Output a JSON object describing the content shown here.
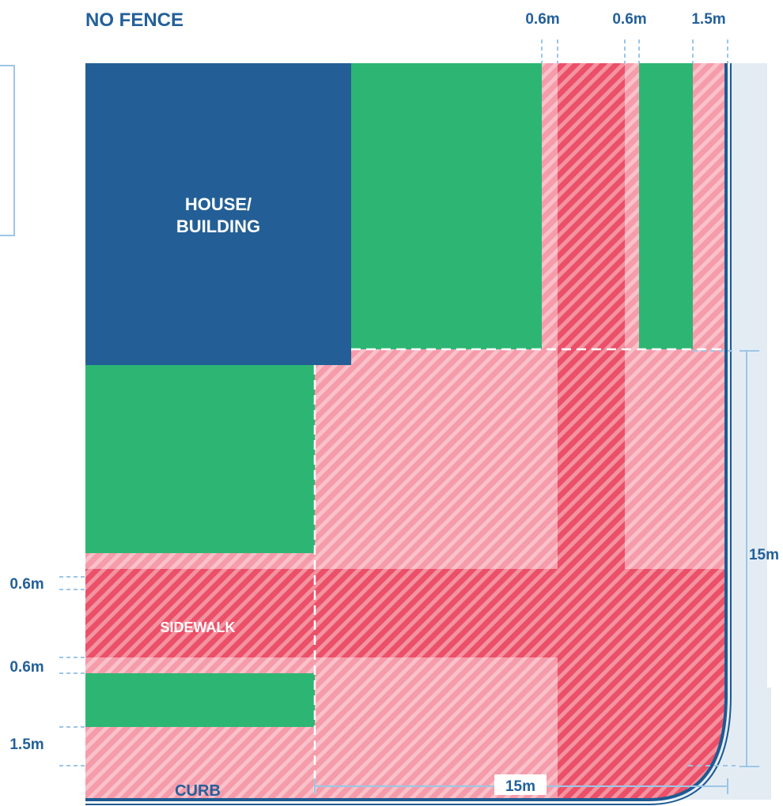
{
  "title": "NO FENCE",
  "house_label": [
    "HOUSE/",
    "BUILDING"
  ],
  "sidewalk_label": "SIDEWALK",
  "curb_label": "CURB",
  "top_measurements": [
    "0.6m",
    "0.6m",
    "1.5m"
  ],
  "left_measurements": [
    "0.6m",
    "0.6m",
    "1.5m"
  ],
  "right_measurement": "15m",
  "bottom_measurement": "15m",
  "colors": {
    "title": "#23609A",
    "house": "#235F96",
    "grass": "#2DB673",
    "zone_light": "#F59BAA",
    "zone_dark": "#EB5068",
    "curb_line": "#1E5A92",
    "street": "#E4ECF3",
    "dimension_line": "#9CC6E6"
  }
}
